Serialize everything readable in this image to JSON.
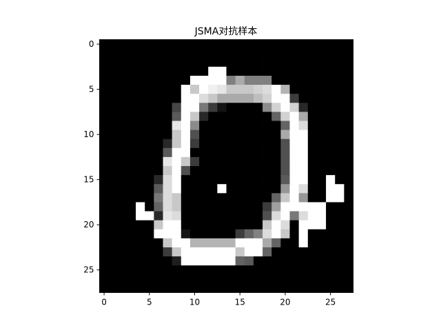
{
  "chart_data": {
    "type": "heatmap",
    "title": "JSMA对抗样本",
    "xlabel": "",
    "ylabel": "",
    "colormap": "gray",
    "value_range": [
      0,
      255
    ],
    "grid": false,
    "xlim": [
      -0.5,
      27.5
    ],
    "ylim": [
      27.5,
      -0.5
    ],
    "xticks": [
      0,
      5,
      10,
      15,
      20,
      25
    ],
    "yticks": [
      0,
      5,
      10,
      15,
      20,
      25
    ],
    "xtick_labels": [
      "0",
      "5",
      "10",
      "15",
      "20",
      "25"
    ],
    "ytick_labels": [
      "0",
      "5",
      "10",
      "15",
      "20",
      "25"
    ],
    "shape": [
      28,
      28
    ],
    "pixels": [
      [
        0,
        0,
        0,
        0,
        0,
        0,
        0,
        0,
        0,
        0,
        0,
        0,
        0,
        0,
        0,
        0,
        0,
        0,
        0,
        0,
        0,
        0,
        0,
        0,
        0,
        0,
        0,
        0
      ],
      [
        0,
        0,
        0,
        0,
        0,
        0,
        0,
        0,
        0,
        0,
        0,
        0,
        0,
        0,
        0,
        0,
        0,
        0,
        0,
        0,
        0,
        0,
        0,
        0,
        0,
        0,
        0,
        0
      ],
      [
        0,
        0,
        0,
        0,
        0,
        0,
        0,
        0,
        0,
        0,
        0,
        0,
        0,
        0,
        0,
        0,
        0,
        0,
        0,
        0,
        0,
        0,
        0,
        0,
        0,
        0,
        0,
        0
      ],
      [
        0,
        0,
        0,
        0,
        0,
        0,
        0,
        0,
        0,
        0,
        0,
        0,
        255,
        255,
        0,
        0,
        0,
        0,
        0,
        0,
        0,
        0,
        0,
        0,
        0,
        0,
        0,
        0
      ],
      [
        0,
        0,
        0,
        0,
        0,
        0,
        0,
        0,
        0,
        0,
        255,
        255,
        255,
        255,
        128,
        170,
        128,
        128,
        128,
        0,
        0,
        0,
        0,
        0,
        0,
        0,
        0,
        0
      ],
      [
        0,
        0,
        0,
        0,
        0,
        0,
        0,
        0,
        0,
        255,
        200,
        255,
        240,
        230,
        200,
        200,
        200,
        210,
        220,
        255,
        180,
        0,
        0,
        0,
        0,
        0,
        0,
        0
      ],
      [
        0,
        0,
        0,
        0,
        0,
        0,
        0,
        0,
        0,
        255,
        255,
        220,
        200,
        170,
        170,
        170,
        170,
        190,
        210,
        255,
        255,
        60,
        0,
        0,
        0,
        0,
        0,
        0
      ],
      [
        0,
        0,
        0,
        0,
        0,
        0,
        0,
        0,
        70,
        255,
        255,
        120,
        60,
        20,
        0,
        0,
        0,
        0,
        140,
        210,
        255,
        210,
        40,
        0,
        0,
        0,
        0,
        0
      ],
      [
        0,
        0,
        0,
        0,
        0,
        0,
        0,
        0,
        90,
        255,
        200,
        40,
        0,
        0,
        0,
        0,
        0,
        0,
        0,
        100,
        210,
        255,
        170,
        0,
        0,
        0,
        0,
        0
      ],
      [
        0,
        0,
        0,
        0,
        0,
        0,
        0,
        0,
        230,
        255,
        140,
        0,
        0,
        0,
        0,
        0,
        0,
        0,
        0,
        0,
        100,
        255,
        220,
        0,
        0,
        0,
        0,
        0
      ],
      [
        0,
        0,
        0,
        0,
        0,
        0,
        0,
        0,
        200,
        255,
        80,
        0,
        0,
        0,
        0,
        0,
        0,
        0,
        0,
        0,
        170,
        255,
        255,
        0,
        0,
        0,
        0,
        0
      ],
      [
        0,
        0,
        0,
        0,
        0,
        0,
        0,
        40,
        200,
        255,
        60,
        0,
        0,
        0,
        0,
        0,
        0,
        0,
        0,
        0,
        80,
        255,
        255,
        0,
        0,
        0,
        0,
        0
      ],
      [
        0,
        0,
        0,
        0,
        0,
        0,
        0,
        90,
        255,
        255,
        0,
        0,
        0,
        0,
        0,
        0,
        0,
        0,
        0,
        0,
        80,
        255,
        255,
        0,
        0,
        0,
        0,
        0
      ],
      [
        0,
        0,
        0,
        0,
        0,
        0,
        0,
        230,
        255,
        200,
        60,
        0,
        0,
        0,
        0,
        0,
        0,
        0,
        0,
        0,
        80,
        255,
        255,
        0,
        0,
        0,
        0,
        0
      ],
      [
        0,
        0,
        0,
        0,
        0,
        0,
        0,
        200,
        255,
        80,
        0,
        0,
        0,
        0,
        0,
        0,
        0,
        0,
        0,
        0,
        80,
        255,
        255,
        0,
        0,
        0,
        0,
        0
      ],
      [
        0,
        0,
        0,
        0,
        0,
        0,
        40,
        220,
        255,
        0,
        0,
        0,
        0,
        0,
        0,
        0,
        0,
        0,
        0,
        0,
        90,
        255,
        255,
        0,
        0,
        255,
        0,
        0
      ],
      [
        0,
        0,
        0,
        0,
        0,
        0,
        90,
        220,
        255,
        0,
        0,
        0,
        0,
        255,
        0,
        0,
        0,
        0,
        0,
        0,
        150,
        255,
        220,
        0,
        0,
        255,
        255,
        0
      ],
      [
        0,
        0,
        0,
        0,
        0,
        0,
        120,
        220,
        200,
        0,
        0,
        0,
        0,
        0,
        0,
        0,
        0,
        0,
        0,
        100,
        200,
        255,
        150,
        0,
        0,
        255,
        255,
        0
      ],
      [
        0,
        0,
        0,
        0,
        255,
        0,
        100,
        220,
        200,
        0,
        0,
        0,
        0,
        0,
        0,
        0,
        0,
        0,
        60,
        160,
        255,
        255,
        255,
        255,
        255,
        0,
        0,
        0
      ],
      [
        0,
        0,
        0,
        0,
        255,
        255,
        40,
        230,
        220,
        0,
        0,
        0,
        0,
        0,
        0,
        0,
        0,
        0,
        80,
        220,
        255,
        120,
        220,
        255,
        255,
        0,
        0,
        0
      ],
      [
        0,
        0,
        0,
        0,
        0,
        0,
        200,
        255,
        255,
        0,
        0,
        0,
        0,
        0,
        0,
        0,
        0,
        0,
        200,
        255,
        220,
        0,
        255,
        255,
        255,
        0,
        0,
        0
      ],
      [
        0,
        0,
        0,
        0,
        0,
        0,
        255,
        255,
        255,
        20,
        0,
        0,
        0,
        0,
        0,
        60,
        100,
        130,
        220,
        255,
        200,
        0,
        255,
        0,
        0,
        0,
        0,
        0
      ],
      [
        0,
        0,
        0,
        0,
        0,
        0,
        0,
        200,
        255,
        255,
        180,
        180,
        180,
        180,
        180,
        255,
        255,
        255,
        170,
        100,
        0,
        0,
        255,
        0,
        0,
        0,
        0,
        0
      ],
      [
        0,
        0,
        0,
        0,
        0,
        0,
        0,
        60,
        200,
        255,
        255,
        255,
        255,
        255,
        255,
        200,
        255,
        255,
        100,
        0,
        0,
        0,
        0,
        0,
        0,
        0,
        0,
        0
      ],
      [
        0,
        0,
        0,
        0,
        0,
        0,
        0,
        0,
        30,
        255,
        255,
        255,
        255,
        255,
        255,
        100,
        90,
        0,
        0,
        0,
        0,
        0,
        0,
        0,
        0,
        0,
        0,
        0
      ],
      [
        0,
        0,
        0,
        0,
        0,
        0,
        0,
        0,
        0,
        0,
        0,
        0,
        0,
        0,
        0,
        0,
        0,
        0,
        0,
        0,
        0,
        0,
        0,
        0,
        0,
        0,
        0,
        0
      ],
      [
        0,
        0,
        0,
        0,
        0,
        0,
        0,
        0,
        0,
        0,
        0,
        0,
        0,
        0,
        0,
        0,
        0,
        0,
        0,
        0,
        0,
        0,
        0,
        0,
        0,
        0,
        0,
        0
      ],
      [
        0,
        0,
        0,
        0,
        0,
        0,
        0,
        0,
        0,
        0,
        0,
        0,
        0,
        0,
        0,
        0,
        0,
        0,
        0,
        0,
        0,
        0,
        0,
        0,
        0,
        0,
        0,
        0
      ]
    ]
  }
}
